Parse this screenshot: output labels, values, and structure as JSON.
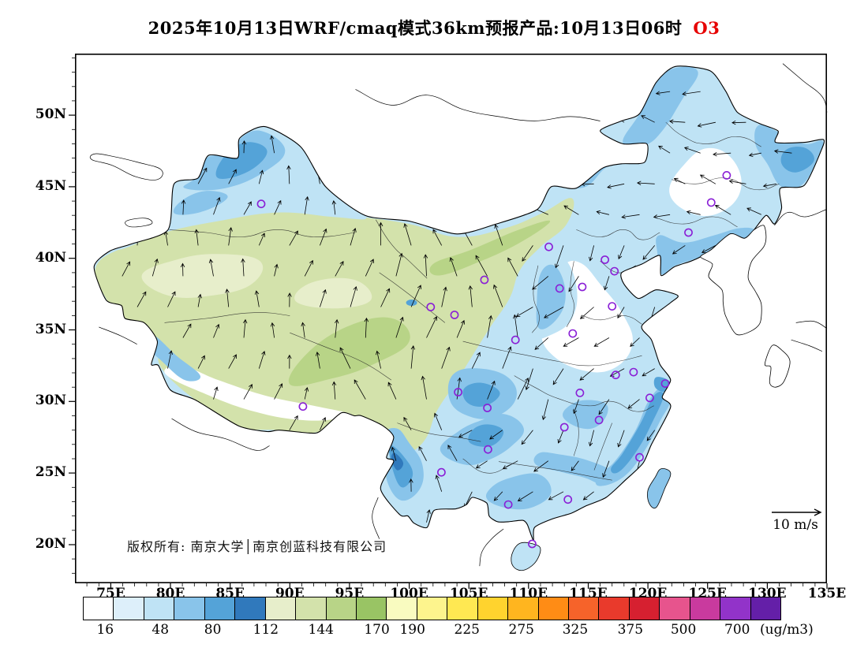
{
  "title": {
    "text": "2025年10月13日WRF/cmaq模式36km预报产品:10月13日06时",
    "pollutant": "O3"
  },
  "colors": {
    "pollutant": "#e60000",
    "station": "#8a1fd6",
    "map_border": "#000000"
  },
  "axes": {
    "lat_labels": [
      "50N",
      "45N",
      "40N",
      "35N",
      "30N",
      "25N",
      "20N"
    ],
    "lon_labels": [
      "75E",
      "80E",
      "85E",
      "90E",
      "95E",
      "100E",
      "105E",
      "110E",
      "115E",
      "120E",
      "125E",
      "130E",
      "135E"
    ]
  },
  "map": {
    "copyright": "版权所有: 南京大学│南京创蓝科技有限公司",
    "wind_legend_label": "10 m/s",
    "stations": [
      [
        87.6,
        43.8
      ],
      [
        126.6,
        45.8
      ],
      [
        125.3,
        43.9
      ],
      [
        123.4,
        41.8
      ],
      [
        111.7,
        40.8
      ],
      [
        116.4,
        39.9
      ],
      [
        117.2,
        39.1
      ],
      [
        114.5,
        38.0
      ],
      [
        112.6,
        37.9
      ],
      [
        106.3,
        38.5
      ],
      [
        103.8,
        36.05
      ],
      [
        101.8,
        36.6
      ],
      [
        108.9,
        34.3
      ],
      [
        113.7,
        34.75
      ],
      [
        117.0,
        36.65
      ],
      [
        118.8,
        32.05
      ],
      [
        117.3,
        31.85
      ],
      [
        121.45,
        31.25
      ],
      [
        120.15,
        30.25
      ],
      [
        114.3,
        30.6
      ],
      [
        113.0,
        28.2
      ],
      [
        115.9,
        28.7
      ],
      [
        104.1,
        30.65
      ],
      [
        106.55,
        29.55
      ],
      [
        91.1,
        29.65
      ],
      [
        106.6,
        26.65
      ],
      [
        102.7,
        25.05
      ],
      [
        113.3,
        23.15
      ],
      [
        108.3,
        22.8
      ],
      [
        110.3,
        20.05
      ],
      [
        119.3,
        26.1
      ]
    ]
  },
  "colorbar": {
    "unit": "(ug/m3)",
    "labels": [
      "16",
      "48",
      "80",
      "112",
      "144",
      "170",
      "190",
      "225",
      "275",
      "325",
      "375",
      "500",
      "700"
    ],
    "label_pcts": [
      3.2,
      11.1,
      18.6,
      26.2,
      34.1,
      42.1,
      47.2,
      55.0,
      62.8,
      70.5,
      78.4,
      86.0,
      93.7
    ],
    "colors": [
      "#ffffff",
      "#ddeffa",
      "#bfe3f5",
      "#89c4ea",
      "#54a3d8",
      "#3079bc",
      "#e7eecb",
      "#d3e2ab",
      "#b8d487",
      "#99c464",
      "#f9fbc0",
      "#fdf48d",
      "#ffe852",
      "#ffd32e",
      "#ffb51f",
      "#ff8c15",
      "#f6632a",
      "#e93a2c",
      "#d62030",
      "#e7548d",
      "#c93a9e",
      "#9233c9",
      "#641fa8"
    ]
  },
  "chart_data": {
    "type": "heatmap",
    "title": "2025年10月13日WRF/cmaq模式36km预报产品:10月13日06时 O3",
    "variable": "O3",
    "unit": "ug/m3",
    "grid": "36km",
    "levels": [
      16,
      48,
      80,
      112,
      144,
      170,
      190,
      225,
      275,
      325,
      375,
      500,
      700
    ],
    "lon_ticks": [
      75,
      80,
      85,
      90,
      95,
      100,
      105,
      110,
      115,
      120,
      125,
      130,
      135
    ],
    "lat_ticks": [
      50,
      45,
      40,
      35,
      30,
      25,
      20
    ],
    "legend_position": "bottom",
    "wind_reference": "10 m/s"
  }
}
